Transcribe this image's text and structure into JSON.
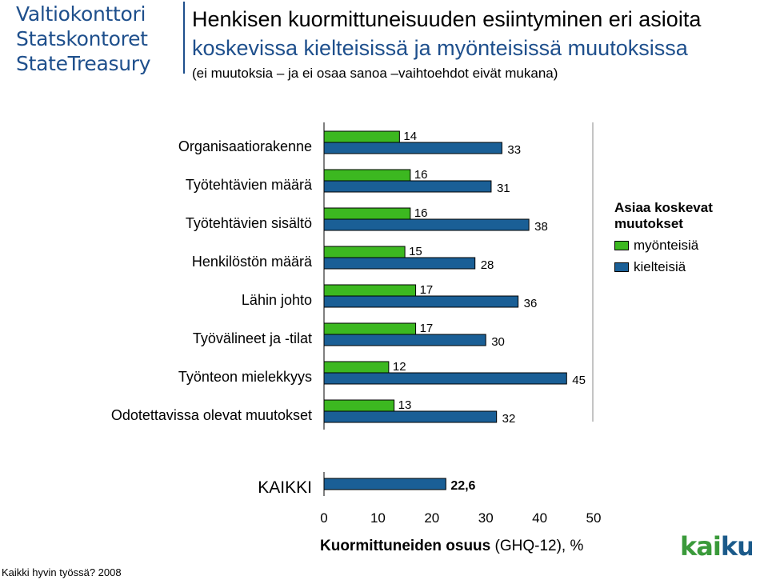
{
  "header": {
    "logo_lines": [
      "Valtiokonttori",
      "Statskontoret",
      "StateTreasury"
    ],
    "title_line1": "Henkisen kuormittuneisuuden esiintyminen eri asioita",
    "title_line2": "koskevissa kielteisissä ja myönteisissä muutoksissa",
    "subtitle": "(ei muutoksia – ja ei osaa sanoa –vaihtoehdot eivät mukana)"
  },
  "chart_data": {
    "type": "bar",
    "orientation": "horizontal",
    "categories": [
      "Organisaatiorakenne",
      "Työtehtävien määrä",
      "Työtehtävien sisältö",
      "Henkilöstön määrä",
      "Lähin johto",
      "Työvälineet ja -tilat",
      "Työnteon mielekkyys",
      "Odotettavissa olevat muutokset"
    ],
    "series": [
      {
        "name": "myönteisiä",
        "color": "#3cb820",
        "values": [
          14,
          16,
          16,
          15,
          17,
          17,
          12,
          13
        ],
        "labels": [
          "14",
          "16",
          "16",
          "15",
          "17",
          "17",
          "12",
          "13"
        ]
      },
      {
        "name": "kielteisiä",
        "color": "#1a5f96",
        "values": [
          33,
          31,
          38,
          28,
          36,
          30,
          45,
          32
        ],
        "labels": [
          "33",
          "31",
          "38",
          "28",
          "36",
          "30",
          "45",
          "32"
        ]
      }
    ],
    "total": {
      "label": "KAIKKI",
      "value": 22.6,
      "value_label": "22,6",
      "color": "#1a5f96"
    },
    "xlim": [
      0,
      50
    ],
    "xticks": [
      "0",
      "10",
      "20",
      "30",
      "40",
      "50"
    ],
    "xlabel_bold": "Kuormittuneiden osuus",
    "xlabel_normal": "(GHQ-12), %",
    "legend": {
      "title": "Asiaa koskevat muutokset",
      "position": "right"
    },
    "grid": false
  },
  "footer": {
    "source": "Kaikki hyvin työssä? 2008",
    "logo_text": "kaiku",
    "logo_green": "#3a9a3a",
    "logo_blue": "#1b5a8a"
  }
}
